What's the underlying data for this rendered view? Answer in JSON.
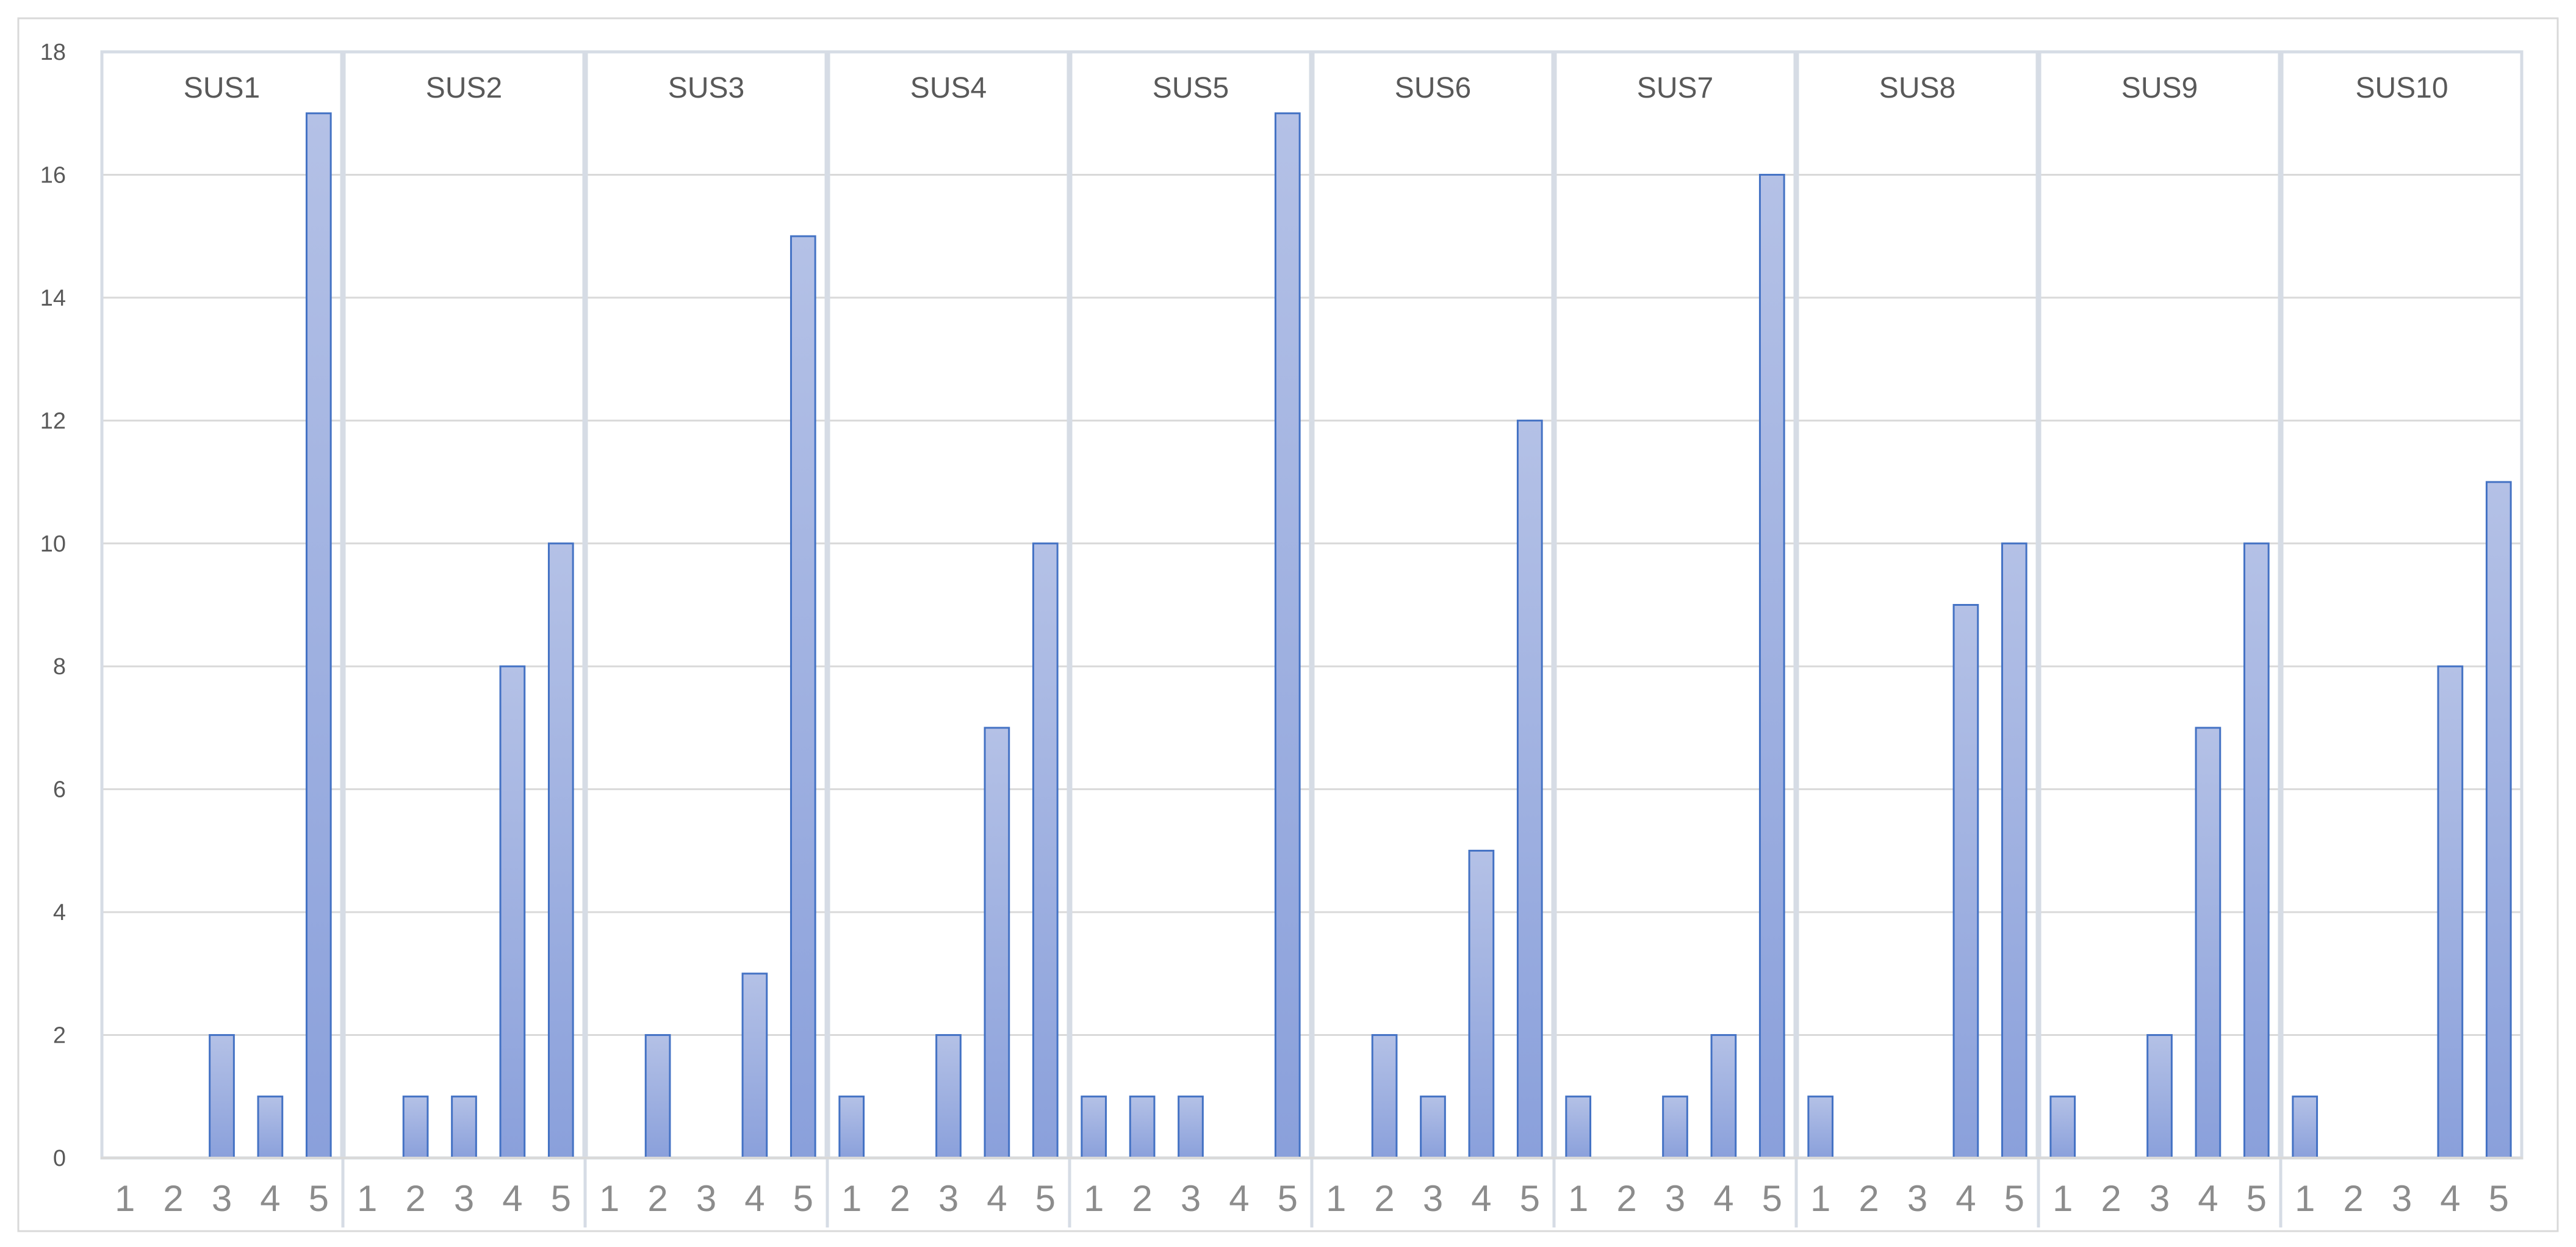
{
  "chart_data": {
    "type": "bar",
    "title": "",
    "xlabel": "",
    "ylabel": "",
    "ylim": [
      0,
      18
    ],
    "yticks": [
      0,
      2,
      4,
      6,
      8,
      10,
      12,
      14,
      16,
      18
    ],
    "grid": true,
    "legend": "none",
    "categories": [
      "1",
      "2",
      "3",
      "4",
      "5"
    ],
    "panels": [
      {
        "name": "SUS1",
        "values": [
          0,
          0,
          2,
          1,
          17
        ]
      },
      {
        "name": "SUS2",
        "values": [
          0,
          1,
          1,
          8,
          10
        ]
      },
      {
        "name": "SUS3",
        "values": [
          0,
          2,
          0,
          3,
          15
        ]
      },
      {
        "name": "SUS4",
        "values": [
          1,
          0,
          2,
          7,
          10
        ]
      },
      {
        "name": "SUS5",
        "values": [
          1,
          1,
          1,
          0,
          17
        ]
      },
      {
        "name": "SUS6",
        "values": [
          0,
          2,
          1,
          5,
          12
        ]
      },
      {
        "name": "SUS7",
        "values": [
          1,
          0,
          1,
          2,
          16
        ]
      },
      {
        "name": "SUS8",
        "values": [
          1,
          0,
          0,
          9,
          10
        ]
      },
      {
        "name": "SUS9",
        "values": [
          1,
          0,
          2,
          7,
          10
        ]
      },
      {
        "name": "SUS10",
        "values": [
          1,
          0,
          0,
          8,
          11
        ]
      }
    ],
    "colors": {
      "bar_fill_top": "#b4c1e6",
      "bar_fill_bottom": "#8aa0db",
      "bar_stroke": "#4472c4",
      "grid": "#d9d9d9",
      "panel_border": "#d6dce5"
    }
  }
}
